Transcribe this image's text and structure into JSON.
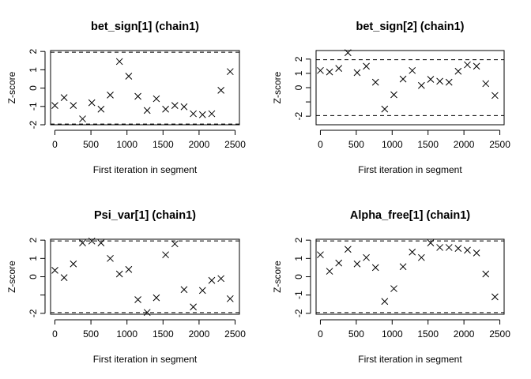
{
  "chart_data": [
    {
      "type": "scatter",
      "title": "bet_sign[1] (chain1)",
      "xlabel": "First iteration in segment",
      "ylabel": "Z-score",
      "xlim": [
        -60,
        2560
      ],
      "ylim": [
        -2,
        2.05
      ],
      "xticks": [
        0,
        500,
        1000,
        1500,
        2000,
        2500
      ],
      "yticks": [
        -2,
        -1,
        0,
        1,
        2
      ],
      "reference_lines": [
        -1.96,
        1.96
      ],
      "marker": "x",
      "x": [
        0,
        128,
        256,
        384,
        512,
        640,
        768,
        896,
        1024,
        1152,
        1280,
        1408,
        1536,
        1664,
        1792,
        1920,
        2048,
        2176,
        2304,
        2432
      ],
      "y": [
        -0.95,
        -0.52,
        -0.95,
        -1.68,
        -0.8,
        -1.15,
        -0.38,
        1.45,
        0.65,
        -0.45,
        -1.22,
        -0.58,
        -1.15,
        -0.95,
        -1.02,
        -1.4,
        -1.45,
        -1.4,
        -0.12,
        0.9
      ]
    },
    {
      "type": "scatter",
      "title": "bet_sign[2] (chain1)",
      "xlabel": "First iteration in segment",
      "ylabel": "Z-score",
      "xlim": [
        -60,
        2560
      ],
      "ylim": [
        -2.6,
        2.6
      ],
      "xticks": [
        0,
        500,
        1000,
        1500,
        2000,
        2500
      ],
      "yticks": [
        -2,
        -1,
        0,
        1,
        2
      ],
      "ytick_labels_visible": [
        "-2",
        "0",
        "1",
        "2"
      ],
      "reference_lines": [
        -1.96,
        1.96
      ],
      "marker": "x",
      "x": [
        0,
        128,
        256,
        384,
        512,
        640,
        768,
        896,
        1024,
        1152,
        1280,
        1408,
        1536,
        1664,
        1792,
        1920,
        2048,
        2176,
        2304,
        2432
      ],
      "y": [
        1.2,
        1.1,
        1.35,
        2.45,
        1.05,
        1.5,
        0.38,
        -1.5,
        -0.5,
        0.6,
        1.2,
        0.15,
        0.58,
        0.45,
        0.38,
        1.15,
        1.6,
        1.5,
        0.28,
        -0.55
      ]
    },
    {
      "type": "scatter",
      "title": "Psi_var[1] (chain1)",
      "xlabel": "First iteration in segment",
      "ylabel": "Z-score",
      "xlim": [
        -60,
        2560
      ],
      "ylim": [
        -2.05,
        2.05
      ],
      "xticks": [
        0,
        500,
        1000,
        1500,
        2000,
        2500
      ],
      "yticks": [
        -2,
        -1,
        0,
        1,
        2
      ],
      "ytick_labels_visible": [
        "-2",
        "0",
        "1",
        "2"
      ],
      "reference_lines": [
        -1.96,
        1.96
      ],
      "marker": "x",
      "x": [
        0,
        128,
        256,
        384,
        512,
        640,
        768,
        896,
        1024,
        1152,
        1280,
        1408,
        1536,
        1664,
        1792,
        1920,
        2048,
        2176,
        2304,
        2432
      ],
      "y": [
        0.35,
        -0.05,
        0.7,
        1.85,
        1.95,
        1.85,
        1.0,
        0.15,
        0.4,
        -1.25,
        -1.95,
        -1.15,
        1.2,
        1.8,
        -0.7,
        -1.65,
        -0.75,
        -0.2,
        -0.1,
        -1.2
      ]
    },
    {
      "type": "scatter",
      "title": "Alpha_free[1] (chain1)",
      "xlabel": "First iteration in segment",
      "ylabel": "Z-score",
      "xlim": [
        -60,
        2560
      ],
      "ylim": [
        -2.05,
        2.05
      ],
      "xticks": [
        0,
        500,
        1000,
        1500,
        2000,
        2500
      ],
      "yticks": [
        -2,
        -1,
        0,
        1,
        2
      ],
      "reference_lines": [
        -1.96,
        1.96
      ],
      "marker": "x",
      "x": [
        0,
        128,
        256,
        384,
        512,
        640,
        768,
        896,
        1024,
        1152,
        1280,
        1408,
        1536,
        1664,
        1792,
        1920,
        2048,
        2176,
        2304,
        2432
      ],
      "y": [
        1.2,
        0.3,
        0.75,
        1.5,
        0.7,
        1.05,
        0.5,
        -1.35,
        -0.65,
        0.55,
        1.35,
        1.05,
        1.85,
        1.6,
        1.6,
        1.55,
        1.45,
        1.3,
        0.15,
        -1.1
      ]
    }
  ]
}
